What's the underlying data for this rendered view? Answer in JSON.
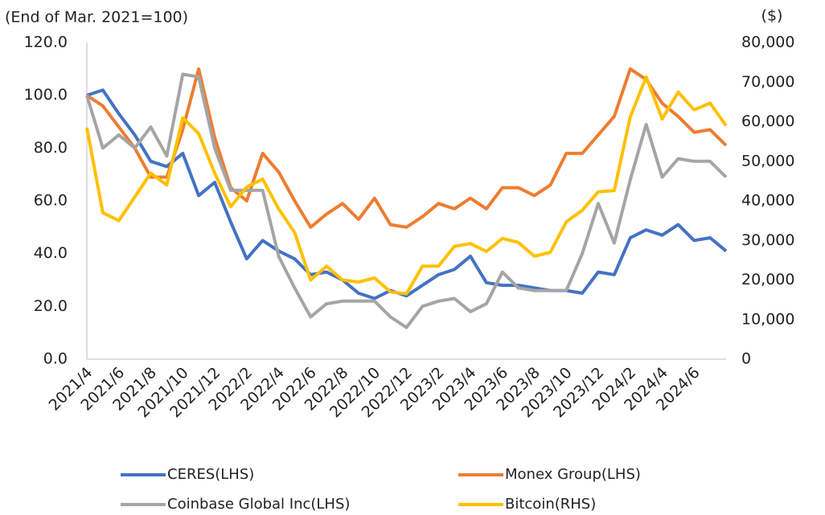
{
  "chart_data": {
    "type": "line",
    "y_label": "(End of Mar. 2021=100)",
    "y2_label": "($)",
    "categories": [
      "2021/4",
      null,
      "2021/6",
      null,
      "2021/8",
      null,
      "2021/10",
      null,
      "2021/12",
      null,
      "2022/2",
      null,
      "2022/4",
      null,
      "2022/6",
      null,
      "2022/8",
      null,
      "2022/10",
      null,
      "2022/12",
      null,
      "2023/2",
      null,
      "2023/4",
      null,
      "2023/6",
      null,
      "2023/8",
      null,
      "2023/10",
      null,
      "2023/12",
      null,
      "2024/2",
      null,
      "2024/4",
      null,
      "2024/6",
      null,
      null
    ],
    "series": [
      {
        "name": "CERES(LHS)",
        "color": "#4472c4",
        "values": [
          100,
          102,
          93,
          85,
          75,
          73,
          78,
          62,
          67,
          52,
          38,
          45,
          41,
          38,
          32,
          33,
          30,
          25,
          23,
          26,
          24,
          28,
          32,
          34,
          39,
          29,
          28,
          28,
          27,
          26,
          26,
          25,
          33,
          32,
          46,
          49,
          47,
          51,
          45,
          46,
          41
        ]
      },
      {
        "name": "Monex Group(LHS)",
        "color": "#ed7d31",
        "values": [
          100,
          96,
          88,
          80,
          69,
          69,
          87,
          110,
          84,
          65,
          60,
          78,
          71,
          60,
          50,
          55,
          59,
          53,
          61,
          51,
          50,
          54,
          59,
          57,
          61,
          57,
          65,
          65,
          62,
          66,
          78,
          78,
          85,
          92,
          110,
          106,
          97,
          92,
          86,
          87,
          81
        ]
      },
      {
        "name": "Coinbase Global Inc(LHS)",
        "color": "#a5a5a5",
        "values": [
          100,
          80,
          85,
          80,
          88,
          77,
          108,
          107,
          80,
          64,
          64,
          64,
          39,
          27,
          16,
          21,
          22,
          22,
          22,
          16,
          12,
          20,
          22,
          23,
          18,
          21,
          33,
          27,
          26,
          26,
          26,
          40,
          59,
          44,
          68,
          89,
          69,
          76,
          75,
          75,
          69
        ]
      },
      {
        "name": "Bitcoin(RHS)",
        "color": "#ffc000",
        "axis": "y2",
        "values": [
          58500,
          37000,
          35000,
          41000,
          47000,
          44000,
          61000,
          57000,
          47000,
          38500,
          43500,
          45500,
          38000,
          32000,
          20000,
          23500,
          20000,
          19500,
          20500,
          17000,
          16500,
          23500,
          23500,
          28500,
          29200,
          27200,
          30500,
          29500,
          26000,
          27000,
          34700,
          37600,
          42300,
          42600,
          61200,
          71300,
          60700,
          67500,
          63000,
          64700,
          59000
        ]
      }
    ],
    "ylim": [
      0,
      120
    ],
    "yticks": [
      {
        "value": 0,
        "label": "0.0"
      },
      {
        "value": 20,
        "label": "20.0"
      },
      {
        "value": 40,
        "label": "40.0"
      },
      {
        "value": 60,
        "label": "60.0"
      },
      {
        "value": 80,
        "label": "80.0"
      },
      {
        "value": 100,
        "label": "100.0"
      },
      {
        "value": 120,
        "label": "120.0"
      }
    ],
    "y2lim": [
      0,
      80000
    ],
    "y2ticks": [
      0,
      {
        "value": 10000,
        "label": "10,000"
      },
      {
        "value": 20000,
        "label": "20,000"
      },
      {
        "value": 30000,
        "label": "30,000"
      },
      {
        "value": 40000,
        "label": "40,000"
      },
      {
        "value": 50000,
        "label": "50,000"
      },
      {
        "value": 60000,
        "label": "60,000"
      },
      {
        "value": 70000,
        "label": "70,000"
      },
      {
        "value": 80000,
        "label": "80,000"
      }
    ],
    "grid": false
  }
}
